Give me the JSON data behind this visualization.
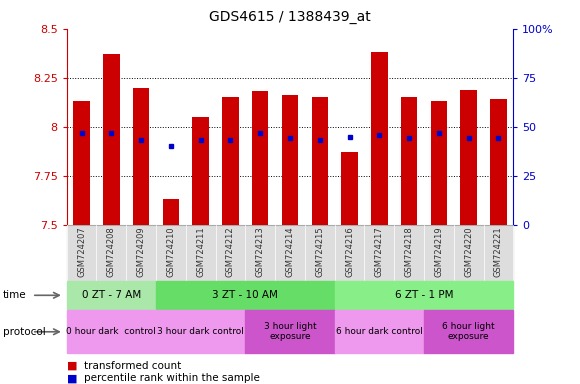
{
  "title": "GDS4615 / 1388439_at",
  "samples": [
    "GSM724207",
    "GSM724208",
    "GSM724209",
    "GSM724210",
    "GSM724211",
    "GSM724212",
    "GSM724213",
    "GSM724214",
    "GSM724215",
    "GSM724216",
    "GSM724217",
    "GSM724218",
    "GSM724219",
    "GSM724220",
    "GSM724221"
  ],
  "red_values": [
    8.13,
    8.37,
    8.2,
    7.63,
    8.05,
    8.15,
    8.18,
    8.16,
    8.15,
    7.87,
    8.38,
    8.15,
    8.13,
    8.19,
    8.14
  ],
  "blue_values": [
    7.97,
    7.97,
    7.93,
    7.9,
    7.93,
    7.93,
    7.97,
    7.94,
    7.93,
    7.95,
    7.96,
    7.94,
    7.97,
    7.94,
    7.94
  ],
  "ymin": 7.5,
  "ymax": 8.5,
  "y_ticks": [
    7.5,
    7.75,
    8.0,
    8.25,
    8.5
  ],
  "y_tick_labels": [
    "7.5",
    "7.75",
    "8",
    "8.25",
    "8.5"
  ],
  "y2min": 0,
  "y2max": 100,
  "y2_ticks": [
    0,
    25,
    50,
    75,
    100
  ],
  "y2_tick_labels": [
    "0",
    "25",
    "50",
    "75",
    "100%"
  ],
  "bar_color": "#cc0000",
  "dot_color": "#0000cc",
  "bar_width": 0.55,
  "bg_color": "#ffffff",
  "time_groups": [
    {
      "label": "0 ZT - 7 AM",
      "start": 0,
      "end": 2,
      "color": "#aae8aa"
    },
    {
      "label": "3 ZT - 10 AM",
      "start": 3,
      "end": 8,
      "color": "#66dd66"
    },
    {
      "label": "6 ZT - 1 PM",
      "start": 9,
      "end": 14,
      "color": "#88ee88"
    }
  ],
  "protocol_groups": [
    {
      "label": "0 hour dark  control",
      "start": 0,
      "end": 2,
      "color": "#ee99ee"
    },
    {
      "label": "3 hour dark control",
      "start": 3,
      "end": 5,
      "color": "#ee99ee"
    },
    {
      "label": "3 hour light\nexposure",
      "start": 6,
      "end": 8,
      "color": "#cc55cc"
    },
    {
      "label": "6 hour dark control",
      "start": 9,
      "end": 11,
      "color": "#ee99ee"
    },
    {
      "label": "6 hour light\nexposure",
      "start": 12,
      "end": 14,
      "color": "#cc55cc"
    }
  ],
  "left_axis_color": "#cc0000",
  "right_axis_color": "#0000cc"
}
